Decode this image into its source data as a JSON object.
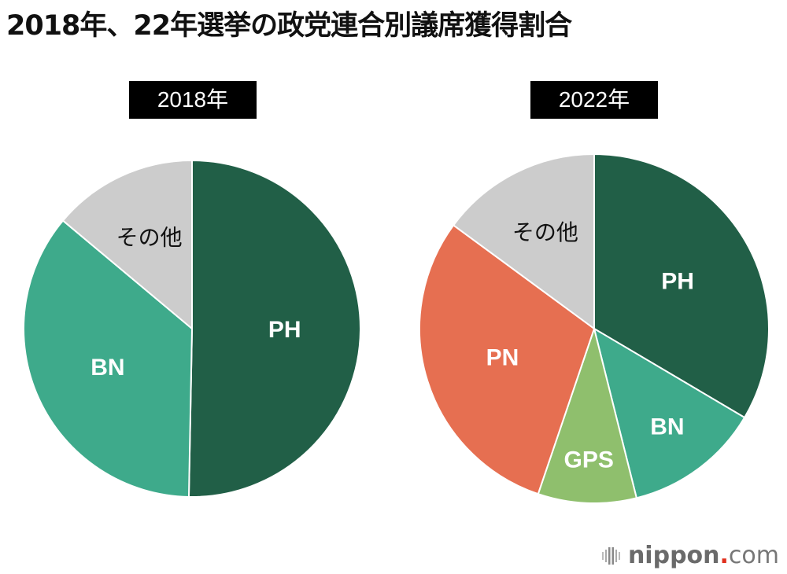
{
  "title": "2018年、22年選挙の政党連合別議席獲得割合",
  "logo": {
    "name": "nippon",
    "dot": ".",
    "tld": "com"
  },
  "chart_data": [
    {
      "type": "pie",
      "title": "2018年",
      "start_angle_deg": 0,
      "direction": "clockwise",
      "slices": [
        {
          "label": "PH",
          "value": 50.3,
          "color": "#215f47",
          "label_color": "#ffffff"
        },
        {
          "label": "BN",
          "value": 35.8,
          "color": "#3eaa8b",
          "label_color": "#ffffff"
        },
        {
          "label": "その他",
          "value": 13.9,
          "color": "#cccccc",
          "label_color": "#111111"
        }
      ],
      "units": "% of seats (estimated from slice angles)"
    },
    {
      "type": "pie",
      "title": "2022年",
      "start_angle_deg": 0,
      "direction": "clockwise",
      "slices": [
        {
          "label": "PH",
          "value": 33.5,
          "color": "#215f47",
          "label_color": "#ffffff"
        },
        {
          "label": "BN",
          "value": 12.6,
          "color": "#3eaa8b",
          "label_color": "#ffffff"
        },
        {
          "label": "GPS",
          "value": 9.1,
          "color": "#8fbf6d",
          "label_color": "#ffffff"
        },
        {
          "label": "PN",
          "value": 29.9,
          "color": "#e66f51",
          "label_color": "#ffffff"
        },
        {
          "label": "その他",
          "value": 14.9,
          "color": "#cccccc",
          "label_color": "#111111"
        }
      ],
      "units": "% of seats (estimated from slice angles)"
    }
  ]
}
